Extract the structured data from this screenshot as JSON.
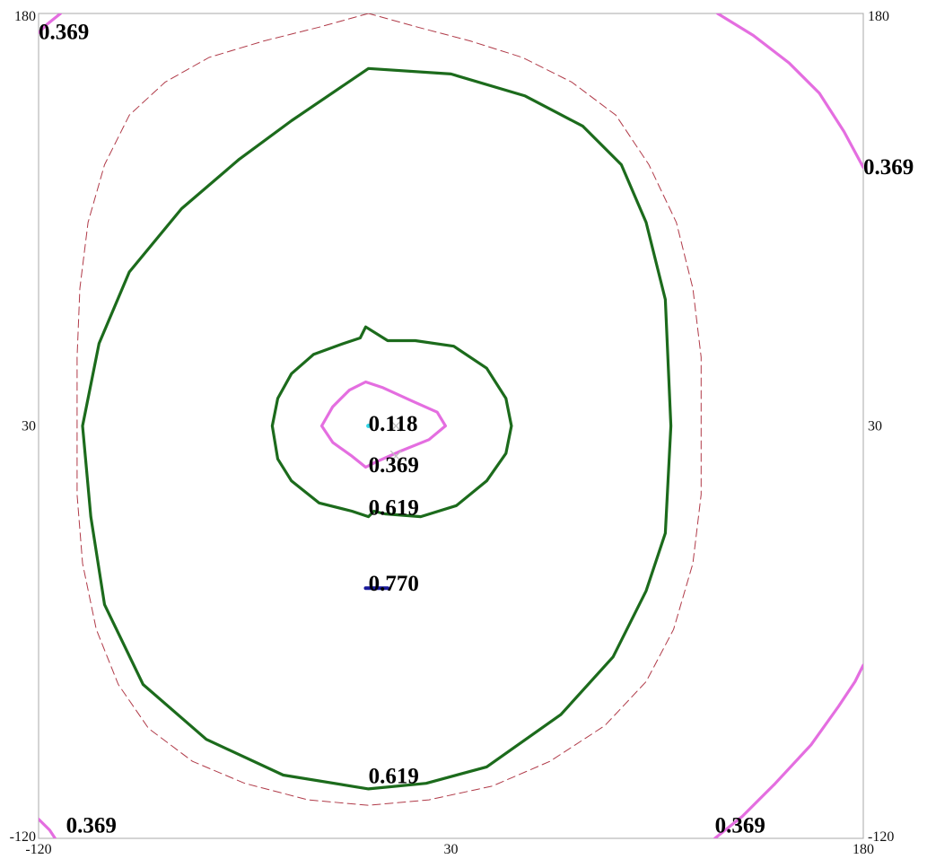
{
  "chart_data": {
    "type": "contour",
    "title": "",
    "xlabel": "",
    "ylabel": "",
    "xlim": [
      -120,
      180
    ],
    "ylim": [
      -120,
      180
    ],
    "grid": false,
    "legend": "none",
    "x_ticks": [
      {
        "value": -120,
        "label": "-120"
      },
      {
        "value": 30,
        "label": "30"
      },
      {
        "value": 180,
        "label": "180"
      }
    ],
    "y_ticks_left": [
      {
        "value": 180,
        "label": "180"
      },
      {
        "value": 30,
        "label": "30"
      },
      {
        "value": -120,
        "label": "-120"
      }
    ],
    "y_ticks_right": [
      {
        "value": 180,
        "label": "180"
      },
      {
        "value": 30,
        "label": "30"
      },
      {
        "value": -120,
        "label": "-120"
      }
    ],
    "contours": [
      {
        "id": "outer-dashed",
        "level": null,
        "color": "#b03a48",
        "style": "dashed",
        "closed": true,
        "points": [
          [
            0,
            180
          ],
          [
            -18,
            175
          ],
          [
            -38,
            170
          ],
          [
            -58,
            164
          ],
          [
            -74,
            155
          ],
          [
            -87,
            143
          ],
          [
            -96,
            125
          ],
          [
            -102,
            104
          ],
          [
            -105,
            80
          ],
          [
            -106,
            55
          ],
          [
            -106,
            30
          ],
          [
            -106,
            5
          ],
          [
            -104,
            -20
          ],
          [
            -99,
            -44
          ],
          [
            -91,
            -64
          ],
          [
            -80,
            -80
          ],
          [
            -64,
            -92
          ],
          [
            -45,
            -100
          ],
          [
            -22,
            -106
          ],
          [
            0,
            -108
          ],
          [
            22,
            -106
          ],
          [
            45,
            -101
          ],
          [
            66,
            -92
          ],
          [
            86,
            -79
          ],
          [
            101,
            -63
          ],
          [
            111,
            -44
          ],
          [
            118,
            -20
          ],
          [
            121,
            5
          ],
          [
            121,
            30
          ],
          [
            121,
            55
          ],
          [
            118,
            80
          ],
          [
            112,
            104
          ],
          [
            102,
            125
          ],
          [
            90,
            143
          ],
          [
            74,
            155
          ],
          [
            56,
            164
          ],
          [
            37,
            170
          ],
          [
            18,
            175
          ]
        ]
      },
      {
        "id": "outer-green",
        "level": 0.619,
        "color": "#1c6b1c",
        "style": "solid",
        "closed": true,
        "points": [
          [
            0,
            160
          ],
          [
            30,
            158
          ],
          [
            57,
            150
          ],
          [
            78,
            139
          ],
          [
            92,
            125
          ],
          [
            101,
            104
          ],
          [
            108,
            76
          ],
          [
            110,
            30
          ],
          [
            108,
            -9
          ],
          [
            101,
            -30
          ],
          [
            89,
            -54
          ],
          [
            70,
            -75
          ],
          [
            43,
            -94
          ],
          [
            21,
            -100
          ],
          [
            0,
            -102
          ],
          [
            -31,
            -97
          ],
          [
            -59,
            -84
          ],
          [
            -82,
            -64
          ],
          [
            -96,
            -35
          ],
          [
            -101,
            -3
          ],
          [
            -104,
            30
          ],
          [
            -98,
            60
          ],
          [
            -87,
            86
          ],
          [
            -68,
            109
          ],
          [
            -47,
            127
          ],
          [
            -28,
            141
          ]
        ]
      },
      {
        "id": "inner-green",
        "level": 0.619,
        "color": "#1c6b1c",
        "style": "solid",
        "closed": true,
        "points": [
          [
            -1,
            66
          ],
          [
            -3,
            62
          ],
          [
            -9,
            60
          ],
          [
            -20,
            56
          ],
          [
            -28,
            49
          ],
          [
            -33,
            40
          ],
          [
            -35,
            30
          ],
          [
            -33,
            18
          ],
          [
            -28,
            10
          ],
          [
            -18,
            2
          ],
          [
            -6,
            -1
          ],
          [
            0,
            -3
          ],
          [
            2,
            -1
          ],
          [
            6,
            -2
          ],
          [
            19,
            -3
          ],
          [
            32,
            1
          ],
          [
            43,
            10
          ],
          [
            50,
            20
          ],
          [
            52,
            30
          ],
          [
            50,
            40
          ],
          [
            43,
            51
          ],
          [
            31,
            59
          ],
          [
            17,
            61
          ],
          [
            7,
            61
          ]
        ]
      },
      {
        "id": "inner-pink",
        "level": 0.369,
        "color": "#e46ee0",
        "style": "solid",
        "closed": true,
        "points": [
          [
            -1,
            46
          ],
          [
            -7,
            43
          ],
          [
            -13,
            37
          ],
          [
            -17,
            30
          ],
          [
            -13,
            24
          ],
          [
            -6,
            19
          ],
          [
            -1,
            15
          ],
          [
            3,
            17
          ],
          [
            12,
            21
          ],
          [
            22,
            25
          ],
          [
            28,
            30
          ],
          [
            25,
            35
          ],
          [
            16,
            39
          ],
          [
            5,
            44
          ]
        ]
      },
      {
        "id": "corner-pink-top-left",
        "level": 0.369,
        "color": "#e46ee0",
        "style": "solid",
        "closed": false,
        "points": [
          [
            -120,
            173
          ],
          [
            -117,
            176
          ],
          [
            -112,
            180
          ]
        ]
      },
      {
        "id": "corner-pink-top-right",
        "level": 0.369,
        "color": "#e46ee0",
        "style": "solid",
        "closed": false,
        "points": [
          [
            127,
            180
          ],
          [
            140,
            172
          ],
          [
            153,
            162
          ],
          [
            164,
            151
          ],
          [
            173,
            137
          ],
          [
            180,
            124
          ]
        ]
      },
      {
        "id": "corner-pink-bottom-left",
        "level": 0.369,
        "color": "#e46ee0",
        "style": "solid",
        "closed": false,
        "points": [
          [
            -120,
            -113
          ],
          [
            -116,
            -117
          ],
          [
            -114,
            -120
          ]
        ]
      },
      {
        "id": "corner-pink-bottom-right",
        "level": 0.369,
        "color": "#e46ee0",
        "style": "solid",
        "closed": false,
        "points": [
          [
            126,
            -120
          ],
          [
            136,
            -112
          ],
          [
            148,
            -100
          ],
          [
            161,
            -86
          ],
          [
            171,
            -72
          ],
          [
            177,
            -63
          ],
          [
            180,
            -57
          ]
        ]
      },
      {
        "id": "peak-blue",
        "level": 0.77,
        "color": "#1a1a9a",
        "style": "solid",
        "closed": false,
        "points": [
          [
            -1,
            -29
          ],
          [
            7,
            -29
          ]
        ]
      }
    ],
    "annotations": [
      {
        "text": "0.118",
        "x": 0,
        "y": 30
      },
      {
        "text": "0.369",
        "x": 0,
        "y": 15
      },
      {
        "text": "0.619",
        "x": 0,
        "y": -0.5
      },
      {
        "text": "0.770",
        "x": 0,
        "y": -28
      },
      {
        "text": "0.619",
        "x": 0,
        "y": -98
      },
      {
        "text": "0.369",
        "x": -120,
        "y": 172.5
      },
      {
        "text": "0.369",
        "x": 180,
        "y": 123.5
      },
      {
        "text": "0.369",
        "x": -110,
        "y": -116
      },
      {
        "text": "0.369",
        "x": 126,
        "y": -116
      }
    ],
    "markers": [
      {
        "type": "cross",
        "x": 10,
        "y": 30,
        "color": "#bfbfbf"
      },
      {
        "type": "cross",
        "x": 10,
        "y": 19,
        "color": "#bfbfbf"
      },
      {
        "type": "dot",
        "x": 0,
        "y": 30,
        "color": "#33d6e6"
      }
    ]
  }
}
